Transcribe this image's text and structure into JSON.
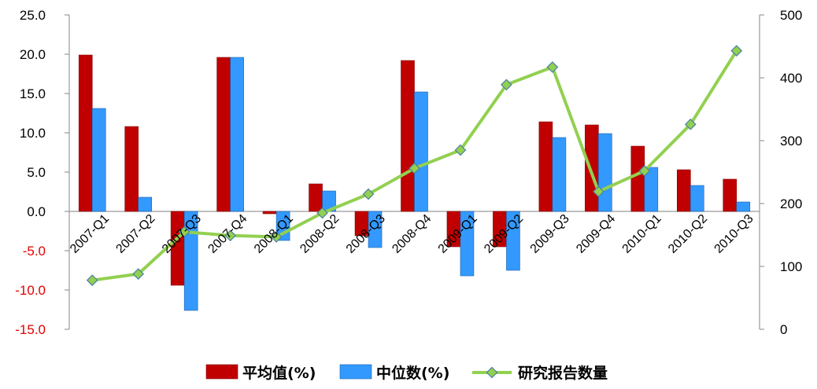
{
  "chart_data": {
    "type": "bar+line",
    "categories": [
      "2007-Q1",
      "2007-Q2",
      "2007-Q3",
      "2007-Q4",
      "2008-Q1",
      "2008-Q2",
      "2008-Q3",
      "2008-Q4",
      "2009-Q1",
      "2009-Q2",
      "2009-Q3",
      "2009-Q4",
      "2010-Q1",
      "2010-Q2",
      "2010-Q3"
    ],
    "series": [
      {
        "name": "平均值(%)",
        "type": "bar",
        "axis": "left",
        "color": "#c00000",
        "values": [
          19.9,
          10.8,
          -9.4,
          19.6,
          -0.3,
          3.5,
          -3.1,
          19.2,
          -4.5,
          -4.5,
          11.4,
          11.0,
          8.3,
          5.3,
          4.1
        ]
      },
      {
        "name": "中位数(%)",
        "type": "bar",
        "axis": "left",
        "color": "#3399ff",
        "values": [
          13.1,
          1.8,
          -12.6,
          19.6,
          -3.7,
          2.6,
          -4.6,
          15.2,
          -8.2,
          -7.5,
          9.4,
          9.9,
          5.6,
          3.3,
          1.2
        ]
      },
      {
        "name": "研究报告数量",
        "type": "line",
        "axis": "right",
        "color": "#92d050",
        "marker_color": "#6aa84f",
        "values": [
          78,
          88,
          155,
          149,
          147,
          185,
          215,
          256,
          285,
          389,
          417,
          219,
          252,
          326,
          443
        ]
      }
    ],
    "left_axis": {
      "min": -15,
      "max": 25,
      "step": 5,
      "tick_labels": [
        "25.0",
        "20.0",
        "15.0",
        "10.0",
        "5.0",
        "0.0",
        "-5.0",
        "-10.0",
        "-15.0"
      ]
    },
    "right_axis": {
      "min": 0,
      "max": 500,
      "step": 100,
      "tick_labels": [
        "500",
        "400",
        "300",
        "200",
        "100",
        "0"
      ]
    },
    "legend_position": "bottom",
    "grid": false,
    "title": "",
    "xlabel": "",
    "ylabel": ""
  }
}
